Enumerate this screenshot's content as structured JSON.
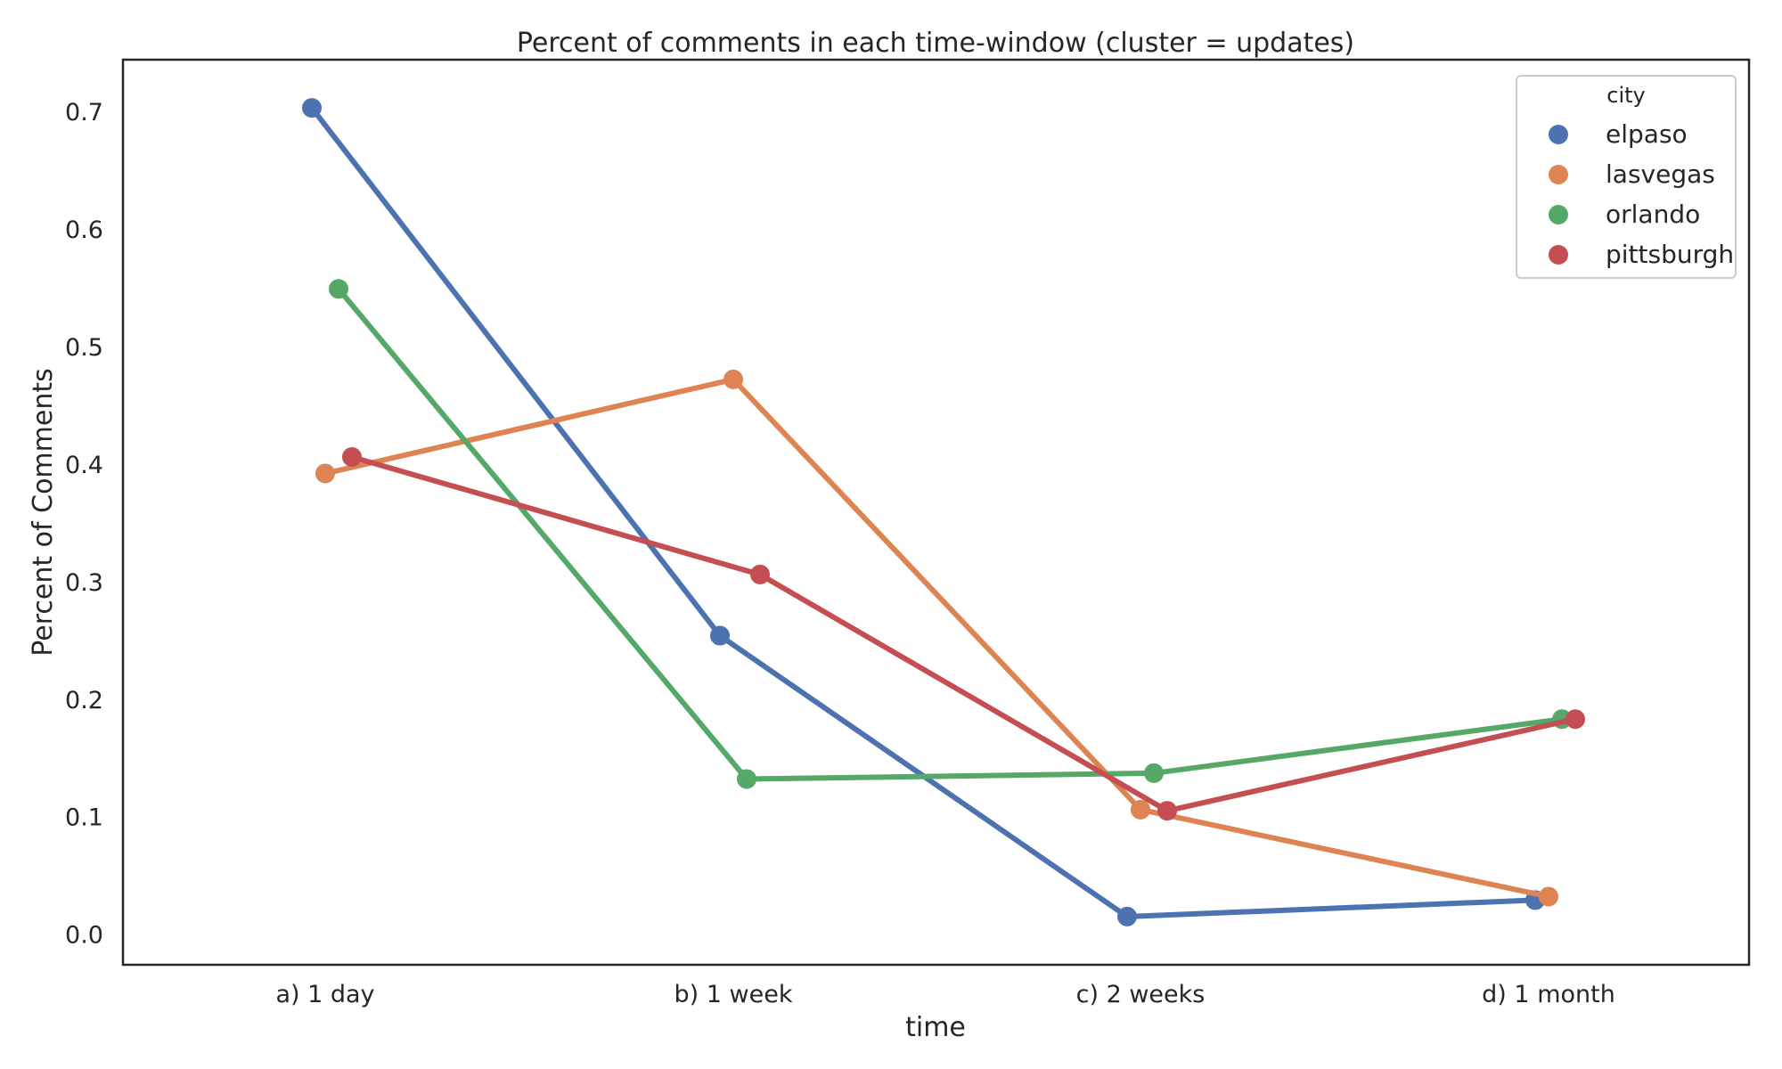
{
  "chart_data": {
    "type": "line",
    "title": "Percent of comments in each time-window (cluster = updates)",
    "xlabel": "time",
    "ylabel": "Percent of Comments",
    "categories": [
      "a) 1 day",
      "b) 1 week",
      "c) 2 weeks",
      "d) 1 month"
    ],
    "yticks": [
      "0.0",
      "0.1",
      "0.2",
      "0.3",
      "0.4",
      "0.5",
      "0.6",
      "0.7"
    ],
    "ylim": [
      -0.026,
      0.744
    ],
    "grid": false,
    "legend": {
      "title": "city",
      "position": "top-right"
    },
    "series": [
      {
        "name": "elpaso",
        "color": "#4c72b0",
        "values": [
          0.703,
          0.254,
          0.015,
          0.029
        ]
      },
      {
        "name": "lasvegas",
        "color": "#dd8452",
        "values": [
          0.392,
          0.472,
          0.106,
          0.032
        ]
      },
      {
        "name": "orlando",
        "color": "#55a868",
        "values": [
          0.549,
          0.132,
          0.137,
          0.183
        ]
      },
      {
        "name": "pittsburgh",
        "color": "#c44e52",
        "values": [
          0.406,
          0.306,
          0.105,
          0.183
        ]
      }
    ]
  }
}
